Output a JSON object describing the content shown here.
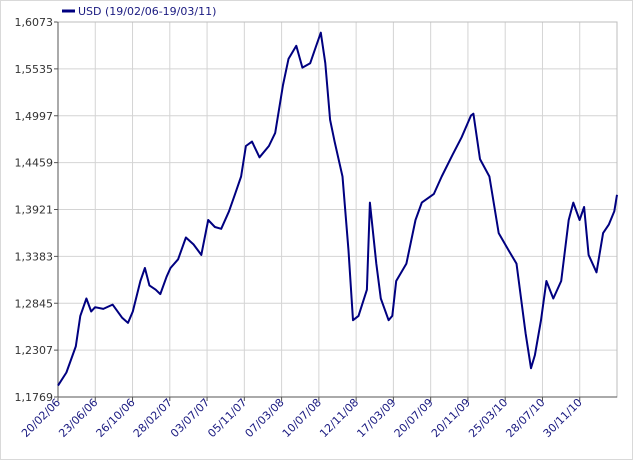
{
  "chart_data": {
    "type": "line",
    "legend": "USD (19/02/06-19/03/11)",
    "legend_placement": "top-left",
    "grid": true,
    "ylim": [
      1.1769,
      1.6073
    ],
    "y_ticks": [
      "1,6073",
      "1,5535",
      "1,4997",
      "1,4459",
      "1,3921",
      "1,3383",
      "1,2845",
      "1,2307",
      "1,1769"
    ],
    "x_ticks": [
      "20/02/06",
      "23/06/06",
      "26/10/06",
      "28/02/07",
      "03/07/07",
      "05/11/07",
      "07/03/08",
      "10/07/08",
      "12/11/08",
      "17/03/09",
      "20/07/09",
      "20/11/09",
      "25/03/10",
      "28/07/10",
      "30/11/10"
    ],
    "series": [
      {
        "name": "USD",
        "color": "#000080",
        "x_dates": [
          "2006-02-20",
          "2006-03-20",
          "2006-04-20",
          "2006-05-05",
          "2006-05-25",
          "2006-06-10",
          "2006-06-23",
          "2006-07-20",
          "2006-08-20",
          "2006-09-20",
          "2006-10-10",
          "2006-10-26",
          "2006-11-20",
          "2006-12-05",
          "2006-12-20",
          "2007-01-10",
          "2007-01-25",
          "2007-02-15",
          "2007-02-28",
          "2007-03-25",
          "2007-04-20",
          "2007-05-15",
          "2007-06-10",
          "2007-07-03",
          "2007-07-25",
          "2007-08-15",
          "2007-09-10",
          "2007-09-30",
          "2007-10-20",
          "2007-11-05",
          "2007-11-25",
          "2007-12-20",
          "2008-01-20",
          "2008-02-10",
          "2008-03-07",
          "2008-03-25",
          "2008-04-20",
          "2008-05-10",
          "2008-06-05",
          "2008-06-25",
          "2008-07-10",
          "2008-07-25",
          "2008-08-10",
          "2008-08-25",
          "2008-09-20",
          "2008-10-10",
          "2008-10-25",
          "2008-11-12",
          "2008-12-10",
          "2008-12-20",
          "2009-01-10",
          "2009-01-25",
          "2009-02-20",
          "2009-03-04",
          "2009-03-17",
          "2009-04-20",
          "2009-05-20",
          "2009-06-10",
          "2009-07-20",
          "2009-08-15",
          "2009-09-20",
          "2009-10-20",
          "2009-11-20",
          "2009-11-28",
          "2009-12-20",
          "2010-01-20",
          "2010-02-20",
          "2010-03-25",
          "2010-04-20",
          "2010-05-20",
          "2010-06-07",
          "2010-06-20",
          "2010-07-10",
          "2010-07-28",
          "2010-08-20",
          "2010-09-15",
          "2010-10-10",
          "2010-10-25",
          "2010-11-15",
          "2010-11-30",
          "2010-12-15",
          "2011-01-10",
          "2011-02-01",
          "2011-02-20",
          "2011-03-10",
          "2011-03-19"
        ],
        "y": [
          1.19,
          1.205,
          1.235,
          1.27,
          1.29,
          1.275,
          1.28,
          1.278,
          1.283,
          1.268,
          1.262,
          1.275,
          1.31,
          1.325,
          1.305,
          1.3,
          1.295,
          1.315,
          1.325,
          1.335,
          1.36,
          1.352,
          1.34,
          1.38,
          1.372,
          1.37,
          1.39,
          1.41,
          1.43,
          1.465,
          1.47,
          1.452,
          1.465,
          1.48,
          1.535,
          1.565,
          1.58,
          1.555,
          1.56,
          1.58,
          1.595,
          1.56,
          1.495,
          1.47,
          1.43,
          1.345,
          1.265,
          1.27,
          1.3,
          1.4,
          1.33,
          1.29,
          1.265,
          1.27,
          1.31,
          1.33,
          1.38,
          1.4,
          1.41,
          1.43,
          1.455,
          1.475,
          1.5,
          1.502,
          1.45,
          1.43,
          1.365,
          1.345,
          1.33,
          1.25,
          1.21,
          1.225,
          1.265,
          1.31,
          1.29,
          1.31,
          1.38,
          1.4,
          1.38,
          1.395,
          1.34,
          1.32,
          1.365,
          1.375,
          1.39,
          1.409
        ]
      }
    ]
  }
}
